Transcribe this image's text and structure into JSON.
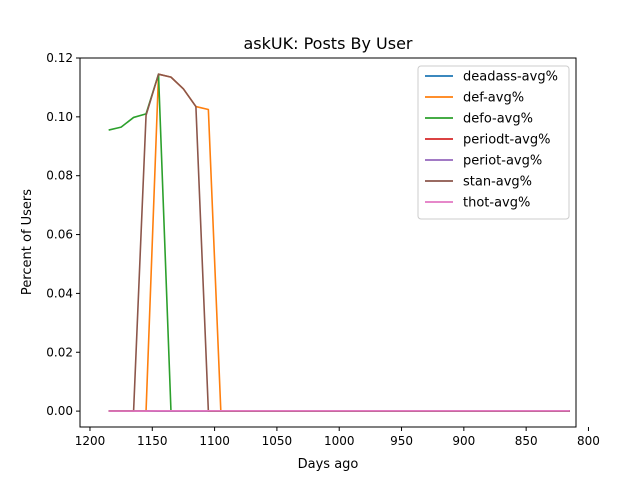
{
  "chart_data": {
    "type": "line",
    "title": "askUK: Posts By User",
    "xlabel": "Days ago",
    "ylabel": "Percent of Users",
    "xlim": [
      1208,
      810
    ],
    "ylim": [
      -0.0054,
      0.12
    ],
    "x_reversed": true,
    "grid": false,
    "legend_position": "top-right",
    "x_ticks": [
      1200,
      1150,
      1100,
      1050,
      1000,
      950,
      900,
      850,
      800
    ],
    "x_tick_labels": [
      "1200",
      "1150",
      "1100",
      "1050",
      "1000",
      "950",
      "900",
      "850",
      "800"
    ],
    "y_ticks": [
      0.0,
      0.02,
      0.04,
      0.06,
      0.08,
      0.1,
      0.12
    ],
    "y_tick_labels": [
      "0.00",
      "0.02",
      "0.04",
      "0.06",
      "0.08",
      "0.10",
      "0.12"
    ],
    "series": [
      {
        "name": "deadass-avg%",
        "color": "#1f77b4",
        "x": [
          1185,
          1175,
          1165,
          1155,
          1145,
          1135,
          1125,
          1115,
          1105,
          1095,
          1000,
          900,
          815
        ],
        "y": [
          0,
          0,
          0,
          0,
          0,
          0,
          0,
          0,
          0,
          0,
          0,
          0,
          0
        ]
      },
      {
        "name": "def-avg%",
        "color": "#ff7f0e",
        "x": [
          1185,
          1175,
          1165,
          1155,
          1145,
          1135,
          1125,
          1115,
          1105,
          1095,
          1000,
          900,
          815
        ],
        "y": [
          0,
          0,
          0,
          0,
          0.1145,
          0.1135,
          0.1095,
          0.1035,
          0.1025,
          0,
          0,
          0,
          0
        ]
      },
      {
        "name": "defo-avg%",
        "color": "#2ca02c",
        "x": [
          1185,
          1175,
          1165,
          1155,
          1145,
          1135,
          1125,
          1115,
          1105,
          1095,
          1000,
          900,
          815
        ],
        "y": [
          0.0955,
          0.0965,
          0.0998,
          0.101,
          0.1145,
          0,
          0,
          0,
          0,
          0,
          0,
          0,
          0
        ]
      },
      {
        "name": "periodt-avg%",
        "color": "#d62728",
        "x": [
          1185,
          1175,
          1165,
          1155,
          1145,
          1135,
          1125,
          1115,
          1105,
          1095,
          1000,
          900,
          815
        ],
        "y": [
          0,
          0,
          0,
          0,
          0,
          0,
          0,
          0,
          0,
          0,
          0,
          0,
          0
        ]
      },
      {
        "name": "periot-avg%",
        "color": "#9467bd",
        "x": [
          1185,
          1175,
          1165,
          1155,
          1145,
          1135,
          1125,
          1115,
          1105,
          1095,
          1000,
          900,
          815
        ],
        "y": [
          0,
          0,
          0,
          0,
          0,
          0,
          0,
          0,
          0,
          0,
          0,
          0,
          0
        ]
      },
      {
        "name": "stan-avg%",
        "color": "#8c564b",
        "x": [
          1185,
          1175,
          1165,
          1155,
          1145,
          1135,
          1125,
          1115,
          1105,
          1095,
          1000,
          900,
          815
        ],
        "y": [
          0,
          0,
          0,
          0.1005,
          0.1145,
          0.1135,
          0.1095,
          0.1035,
          0,
          0,
          0,
          0,
          0
        ]
      },
      {
        "name": "thot-avg%",
        "color": "#e377c2",
        "x": [
          1185,
          1175,
          1165,
          1155,
          1145,
          1135,
          1125,
          1115,
          1105,
          1095,
          1000,
          900,
          815
        ],
        "y": [
          0,
          0,
          0,
          0,
          0.0001,
          0.0001,
          0.0001,
          0.0001,
          0.0001,
          0.0001,
          0.0001,
          0.0001,
          0.0001
        ]
      }
    ]
  }
}
